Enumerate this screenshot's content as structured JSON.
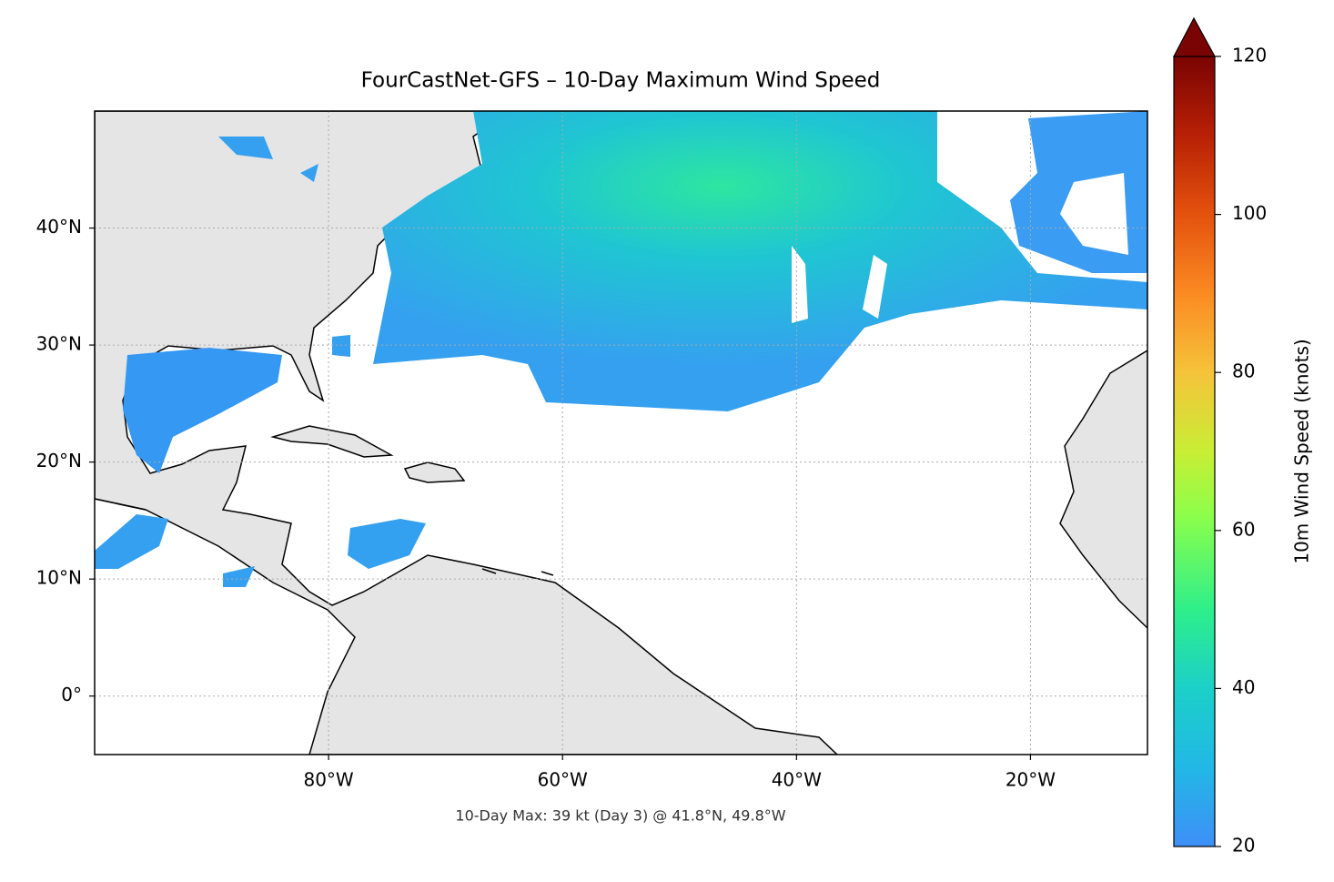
{
  "chart_data": {
    "type": "map",
    "title": "FourCastNet-GFS – 10-Day Maximum Wind Speed",
    "annotation": "10-Day Max: 39 kt (Day 3) @ 41.8°N, 49.8°W",
    "xlim": [
      -100,
      -10
    ],
    "ylim": [
      -5,
      50
    ],
    "xticks": [
      {
        "value": -80,
        "label": "80°W"
      },
      {
        "value": -60,
        "label": "60°W"
      },
      {
        "value": -40,
        "label": "40°W"
      },
      {
        "value": -20,
        "label": "20°W"
      }
    ],
    "yticks": [
      {
        "value": 0,
        "label": "0°"
      },
      {
        "value": 10,
        "label": "10°N"
      },
      {
        "value": 20,
        "label": "20°N"
      },
      {
        "value": 30,
        "label": "30°N"
      },
      {
        "value": 40,
        "label": "40°N"
      }
    ],
    "grid": true,
    "colorbar": {
      "label": "10m Wind Speed (knots)",
      "lim": [
        20,
        120
      ],
      "ticks": [
        20,
        40,
        60,
        80,
        100,
        120
      ]
    }
  }
}
